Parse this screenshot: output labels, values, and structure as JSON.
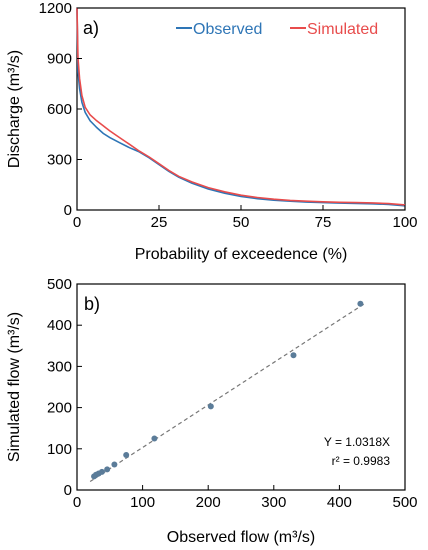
{
  "chart_data": [
    {
      "type": "line",
      "panel_label": "a)",
      "xlabel": "Probability of exceedence (%)",
      "ylabel": "Discharge (m³/s)",
      "xlim": [
        0,
        100
      ],
      "ylim": [
        0,
        1200
      ],
      "xticks": [
        "0",
        "25",
        "50",
        "75",
        "100"
      ],
      "yticks": [
        "0",
        "300",
        "600",
        "900",
        "1200"
      ],
      "legend_position": "top-right",
      "grid": false,
      "series": [
        {
          "name": "Observed",
          "color": "#2e75b6",
          "points": [
            [
              0,
              1200
            ],
            [
              0.3,
              820
            ],
            [
              0.8,
              720
            ],
            [
              1.5,
              640
            ],
            [
              2.5,
              580
            ],
            [
              4,
              530
            ],
            [
              6,
              490
            ],
            [
              8,
              455
            ],
            [
              10,
              430
            ],
            [
              13,
              400
            ],
            [
              16,
              370
            ],
            [
              19,
              345
            ],
            [
              22,
              310
            ],
            [
              25,
              270
            ],
            [
              28,
              230
            ],
            [
              31,
              195
            ],
            [
              35,
              160
            ],
            [
              40,
              125
            ],
            [
              45,
              100
            ],
            [
              50,
              80
            ],
            [
              55,
              67
            ],
            [
              60,
              58
            ],
            [
              65,
              52
            ],
            [
              70,
              47
            ],
            [
              75,
              44
            ],
            [
              80,
              41
            ],
            [
              85,
              39
            ],
            [
              90,
              37
            ],
            [
              95,
              33
            ],
            [
              100,
              25
            ]
          ]
        },
        {
          "name": "Simulated",
          "color": "#e84c4c",
          "points": [
            [
              0,
              1200
            ],
            [
              0.3,
              900
            ],
            [
              0.8,
              780
            ],
            [
              1.5,
              680
            ],
            [
              2.5,
              610
            ],
            [
              4,
              565
            ],
            [
              6,
              530
            ],
            [
              8,
              500
            ],
            [
              10,
              470
            ],
            [
              13,
              430
            ],
            [
              16,
              390
            ],
            [
              19,
              350
            ],
            [
              22,
              315
            ],
            [
              25,
              275
            ],
            [
              28,
              235
            ],
            [
              31,
              200
            ],
            [
              35,
              167
            ],
            [
              40,
              133
            ],
            [
              45,
              108
            ],
            [
              50,
              88
            ],
            [
              55,
              74
            ],
            [
              60,
              64
            ],
            [
              65,
              57
            ],
            [
              70,
              52
            ],
            [
              75,
              49
            ],
            [
              80,
              46
            ],
            [
              85,
              44
            ],
            [
              90,
              42
            ],
            [
              95,
              38
            ],
            [
              100,
              30
            ]
          ]
        }
      ]
    },
    {
      "type": "scatter",
      "panel_label": "b)",
      "xlabel": "Observed  flow (m³/s)",
      "ylabel": "Simulated flow (m³/s)",
      "xlim": [
        0,
        500
      ],
      "ylim": [
        0,
        500
      ],
      "xticks": [
        "0",
        "100",
        "200",
        "300",
        "400",
        "500"
      ],
      "yticks": [
        "0",
        "100",
        "200",
        "300",
        "400",
        "500"
      ],
      "grid": false,
      "marker_color": "#5b7c99",
      "points": [
        [
          26,
          33
        ],
        [
          29,
          37
        ],
        [
          33,
          40
        ],
        [
          38,
          44
        ],
        [
          46,
          50
        ],
        [
          57,
          62
        ],
        [
          75,
          85
        ],
        [
          118,
          125
        ],
        [
          204,
          203
        ],
        [
          330,
          327
        ],
        [
          432,
          452
        ]
      ],
      "trendline": {
        "slope": 1.0318,
        "intercept": 0,
        "x_range": [
          20,
          440
        ],
        "color": "#777777"
      },
      "annotations": [
        "Y = 1.0318X",
        "r² = 0.9983"
      ]
    }
  ]
}
